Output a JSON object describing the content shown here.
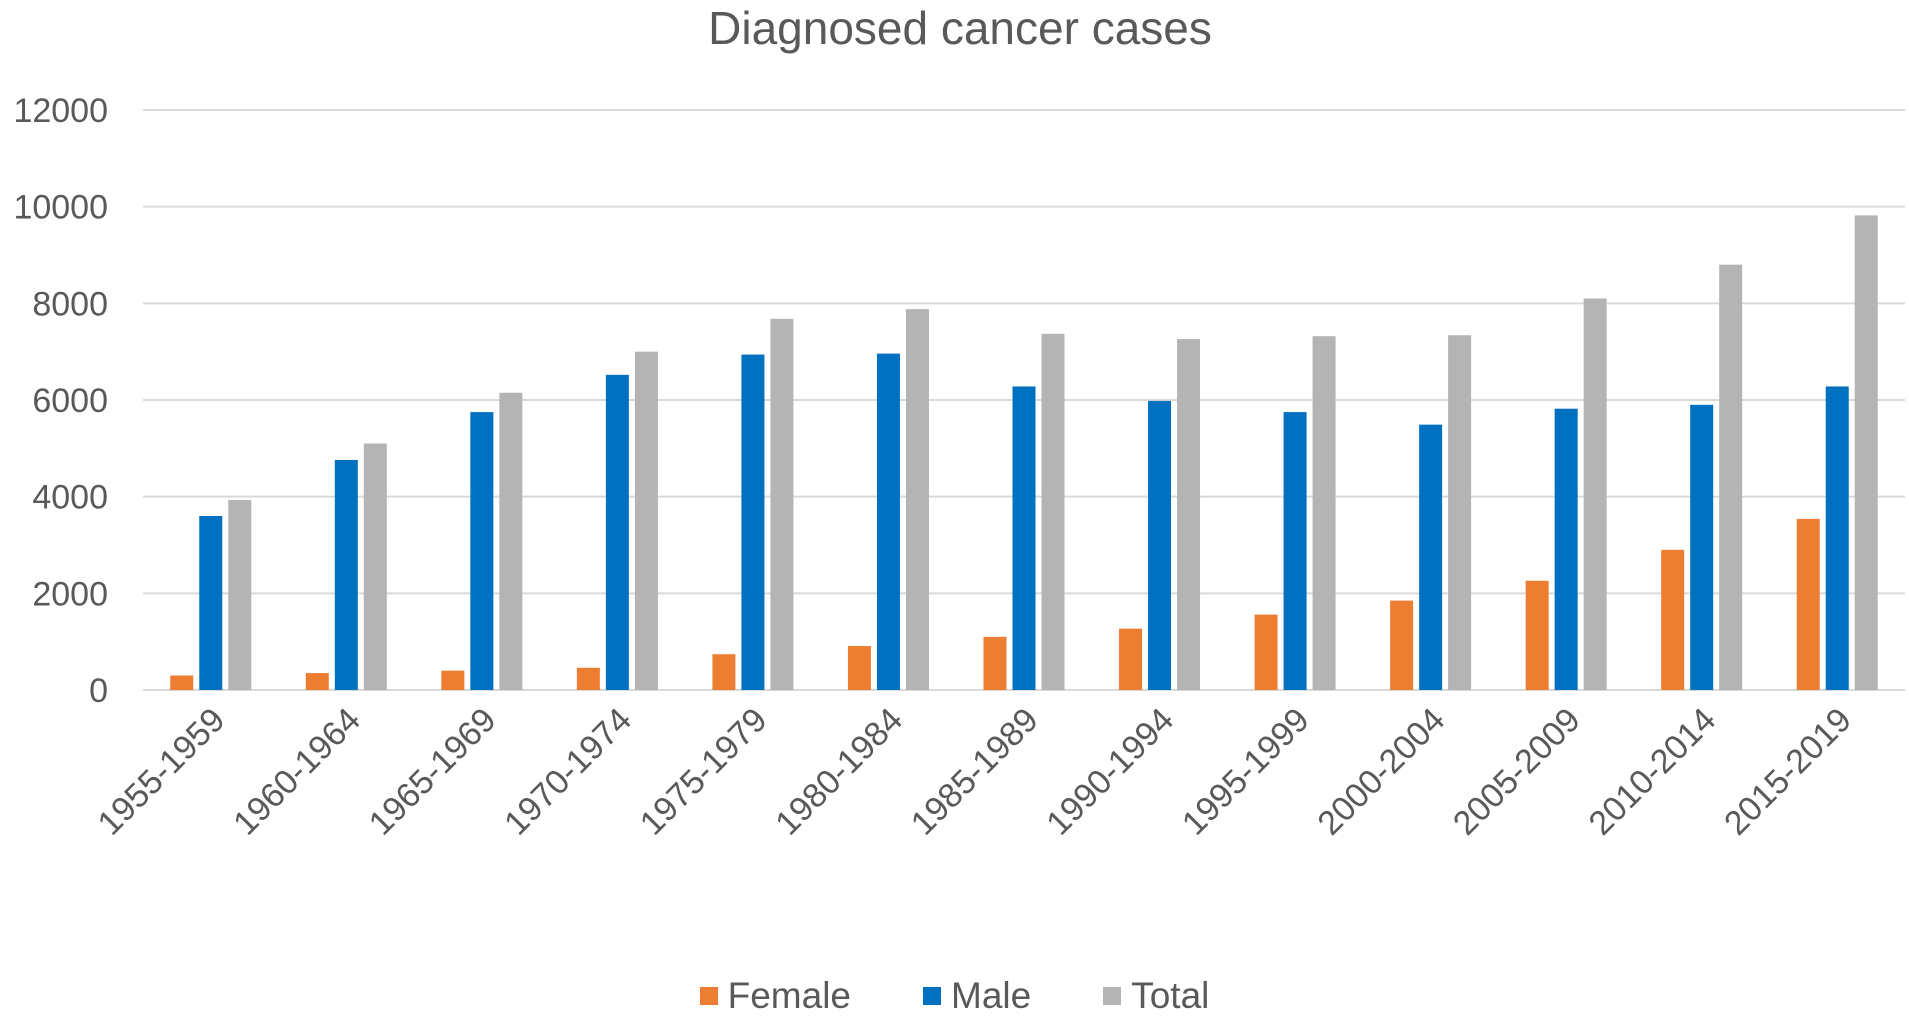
{
  "chart_data": {
    "type": "bar",
    "title": "Diagnosed cancer cases",
    "xlabel": "",
    "ylabel": "",
    "ylim": [
      0,
      12000
    ],
    "yticks": [
      0,
      2000,
      4000,
      6000,
      8000,
      10000,
      12000
    ],
    "grid": true,
    "legend_position": "bottom",
    "categories": [
      "1955-1959",
      "1960-1964",
      "1965-1969",
      "1970-1974",
      "1975-1979",
      "1980-1984",
      "1985-1989",
      "1990-1994",
      "1995-1999",
      "2000-2004",
      "2005-2009",
      "2010-2014",
      "2015-2019"
    ],
    "series": [
      {
        "name": "Female",
        "color": "#ED7D31",
        "values": [
          300,
          350,
          400,
          460,
          740,
          910,
          1100,
          1270,
          1560,
          1850,
          2260,
          2900,
          3540
        ]
      },
      {
        "name": "Male",
        "color": "#0070C0",
        "values": [
          3600,
          4760,
          5750,
          6520,
          6940,
          6960,
          6280,
          5980,
          5750,
          5490,
          5820,
          5900,
          6280
        ]
      },
      {
        "name": "Total",
        "color": "#B4B4B4",
        "values": [
          3930,
          5100,
          6150,
          7000,
          7680,
          7880,
          7370,
          7260,
          7320,
          7340,
          8100,
          8800,
          9820
        ]
      }
    ]
  }
}
